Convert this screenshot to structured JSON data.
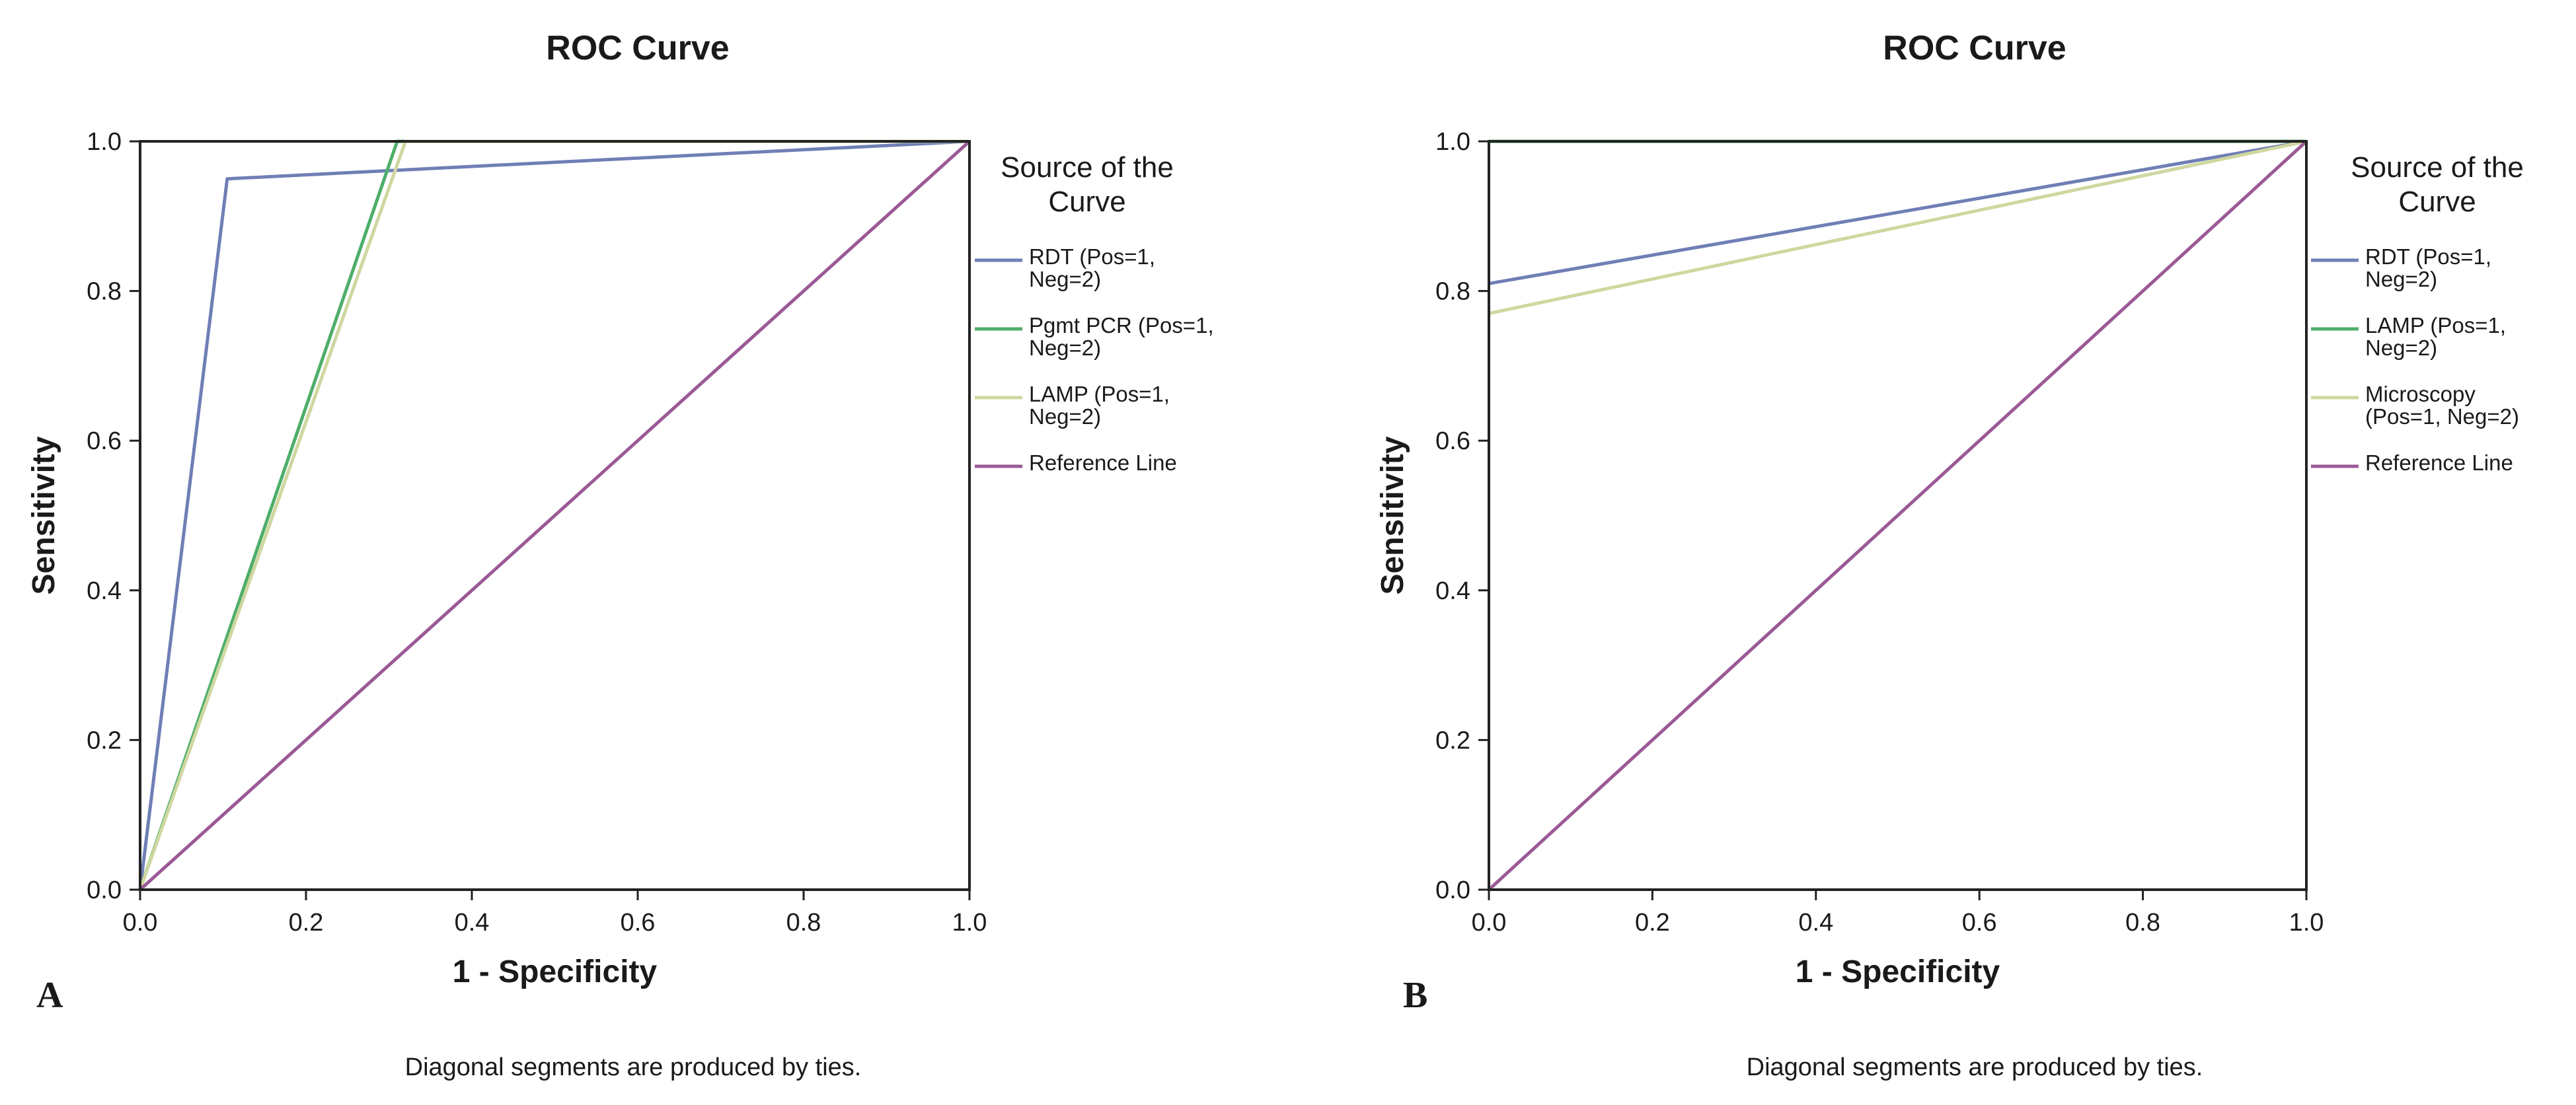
{
  "chart_data": [
    {
      "type": "line",
      "panel": "A",
      "title": "ROC Curve",
      "xlabel": "1 - Specificity",
      "ylabel": "Sensitivity",
      "xlim": [
        0,
        1
      ],
      "ylim": [
        0,
        1
      ],
      "xticks": [
        "0.0",
        "0.2",
        "0.4",
        "0.6",
        "0.8",
        "1.0"
      ],
      "yticks": [
        "0.0",
        "0.2",
        "0.4",
        "0.6",
        "0.8",
        "1.0"
      ],
      "grid": false,
      "legend_title": "Source of the Curve",
      "legend_title_lines": [
        "Source of the",
        "Curve"
      ],
      "legend_position": "right",
      "series": [
        {
          "name": "RDT (Pos=1, Neg=2)",
          "label_lines": [
            "RDT (Pos=1,",
            "Neg=2)"
          ],
          "color": "#6f7fb6",
          "x": [
            0,
            0.105,
            1
          ],
          "y": [
            0,
            0.95,
            1
          ]
        },
        {
          "name": "Pgmt PCR (Pos=1, Neg=2)",
          "label_lines": [
            "Pgmt PCR (Pos=1,",
            "Neg=2)"
          ],
          "color": "#4fae6a",
          "x": [
            0,
            0.31,
            1
          ],
          "y": [
            0,
            1,
            1
          ]
        },
        {
          "name": "LAMP (Pos=1, Neg=2)",
          "label_lines": [
            "LAMP (Pos=1,",
            "Neg=2)"
          ],
          "color": "#cfd7a0",
          "x": [
            0,
            0.32,
            1
          ],
          "y": [
            0,
            1,
            1
          ]
        },
        {
          "name": "Reference Line",
          "label_lines": [
            "Reference Line"
          ],
          "color": "#9a5a96",
          "x": [
            0,
            1
          ],
          "y": [
            0,
            1
          ]
        }
      ],
      "footnote": "Diagonal segments are produced by ties."
    },
    {
      "type": "line",
      "panel": "B",
      "title": "ROC Curve",
      "xlabel": "1 - Specificity",
      "ylabel": "Sensitivity",
      "xlim": [
        0,
        1
      ],
      "ylim": [
        0,
        1
      ],
      "xticks": [
        "0.0",
        "0.2",
        "0.4",
        "0.6",
        "0.8",
        "1.0"
      ],
      "yticks": [
        "0.0",
        "0.2",
        "0.4",
        "0.6",
        "0.8",
        "1.0"
      ],
      "grid": false,
      "legend_title": "Source of the Curve",
      "legend_title_lines": [
        "Source of the",
        "Curve"
      ],
      "legend_position": "right",
      "series": [
        {
          "name": "RDT (Pos=1, Neg=2)",
          "label_lines": [
            "RDT (Pos=1,",
            "Neg=2)"
          ],
          "color": "#6f7fb6",
          "x": [
            0,
            1
          ],
          "y": [
            0.81,
            1
          ]
        },
        {
          "name": "LAMP (Pos=1, Neg=2)",
          "label_lines": [
            "LAMP (Pos=1,",
            "Neg=2)"
          ],
          "color": "#4fae6a",
          "x": [
            0,
            1
          ],
          "y": [
            1,
            1
          ]
        },
        {
          "name": "Microscopy (Pos=1, Neg=2)",
          "label_lines": [
            "Microscopy",
            "(Pos=1, Neg=2)"
          ],
          "color": "#cfd7a0",
          "x": [
            0,
            1
          ],
          "y": [
            0.77,
            1
          ]
        },
        {
          "name": "Reference Line",
          "label_lines": [
            "Reference Line"
          ],
          "color": "#9a5a96",
          "x": [
            0,
            1
          ],
          "y": [
            0,
            1
          ]
        }
      ],
      "footnote": "Diagonal segments are produced by ties."
    }
  ]
}
